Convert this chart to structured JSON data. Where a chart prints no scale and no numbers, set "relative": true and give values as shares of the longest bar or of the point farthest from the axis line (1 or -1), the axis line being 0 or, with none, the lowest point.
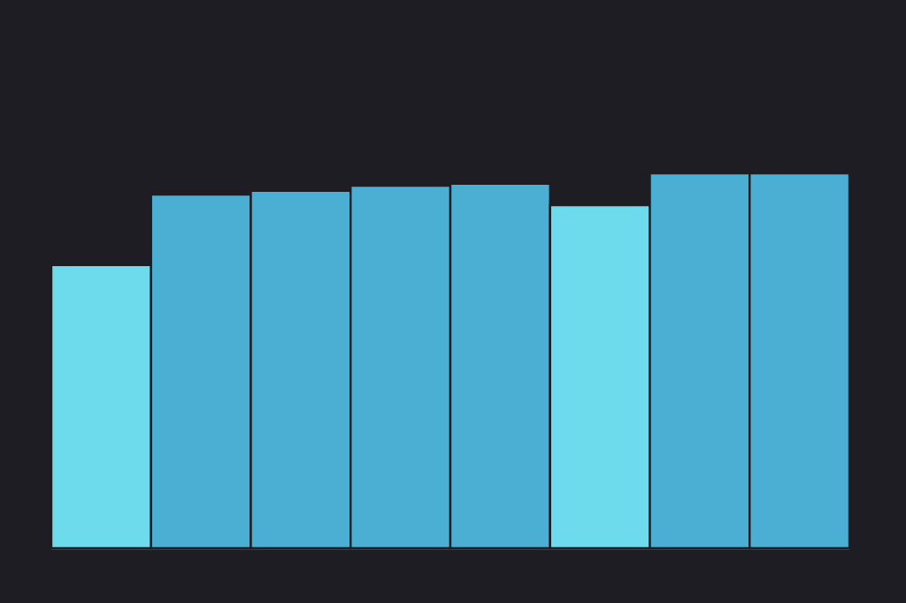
{
  "chart_data": {
    "type": "bar",
    "relative": true,
    "categories": [
      null,
      null,
      null,
      null,
      null,
      null,
      null,
      null
    ],
    "values": [
      0.755,
      0.943,
      0.953,
      0.967,
      0.972,
      0.915,
      1,
      1
    ],
    "colors": [
      "#6ddbeb",
      "#4aafd2",
      "#4aafd2",
      "#4aafd2",
      "#4aafd2",
      "#6ddbeb",
      "#4aafd2",
      "#4aafd2"
    ]
  }
}
